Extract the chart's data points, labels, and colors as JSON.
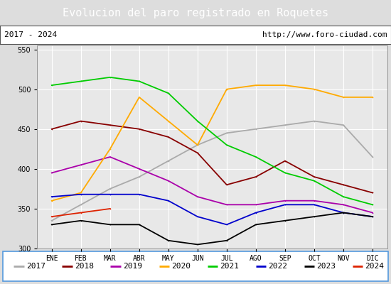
{
  "title": "Evolucion del paro registrado en Roquetes",
  "subtitle_left": "2017 - 2024",
  "subtitle_right": "http://www.foro-ciudad.com",
  "months": [
    "ENE",
    "FEB",
    "MAR",
    "ABR",
    "MAY",
    "JUN",
    "JUL",
    "AGO",
    "SEP",
    "OCT",
    "NOV",
    "DIC"
  ],
  "ylim": [
    300,
    555
  ],
  "yticks": [
    300,
    350,
    400,
    450,
    500,
    550
  ],
  "series": {
    "2017": {
      "color": "#aaaaaa",
      "linestyle": "-",
      "values": [
        335,
        355,
        375,
        390,
        410,
        430,
        445,
        450,
        455,
        460,
        455,
        415
      ]
    },
    "2018": {
      "color": "#880000",
      "linestyle": "-",
      "values": [
        450,
        460,
        455,
        450,
        440,
        420,
        380,
        390,
        410,
        390,
        380,
        370
      ]
    },
    "2019": {
      "color": "#aa00aa",
      "linestyle": "-",
      "values": [
        395,
        405,
        415,
        400,
        385,
        365,
        355,
        355,
        360,
        360,
        355,
        345
      ]
    },
    "2020": {
      "color": "#ffaa00",
      "linestyle": "-",
      "values": [
        360,
        370,
        425,
        490,
        460,
        430,
        500,
        505,
        505,
        500,
        490,
        490
      ]
    },
    "2021": {
      "color": "#00cc00",
      "linestyle": "-",
      "values": [
        505,
        510,
        515,
        510,
        495,
        460,
        430,
        415,
        395,
        385,
        365,
        355
      ]
    },
    "2022": {
      "color": "#0000cc",
      "linestyle": "-",
      "values": [
        365,
        368,
        368,
        368,
        360,
        340,
        330,
        345,
        355,
        355,
        345,
        340
      ]
    },
    "2023": {
      "color": "#000000",
      "linestyle": "-",
      "values": [
        330,
        335,
        330,
        330,
        310,
        305,
        310,
        330,
        335,
        340,
        345,
        340
      ]
    },
    "2024": {
      "color": "#dd2200",
      "linestyle": "-",
      "values": [
        340,
        345,
        350,
        null,
        null,
        null,
        null,
        null,
        null,
        null,
        null,
        null
      ]
    }
  },
  "title_bg": "#5599dd",
  "title_color": "white",
  "title_fontsize": 11,
  "subtitle_fontsize": 8,
  "legend_fontsize": 8,
  "axis_fontsize": 7,
  "plot_bg": "#e8e8e8",
  "grid_color": "#ffffff"
}
